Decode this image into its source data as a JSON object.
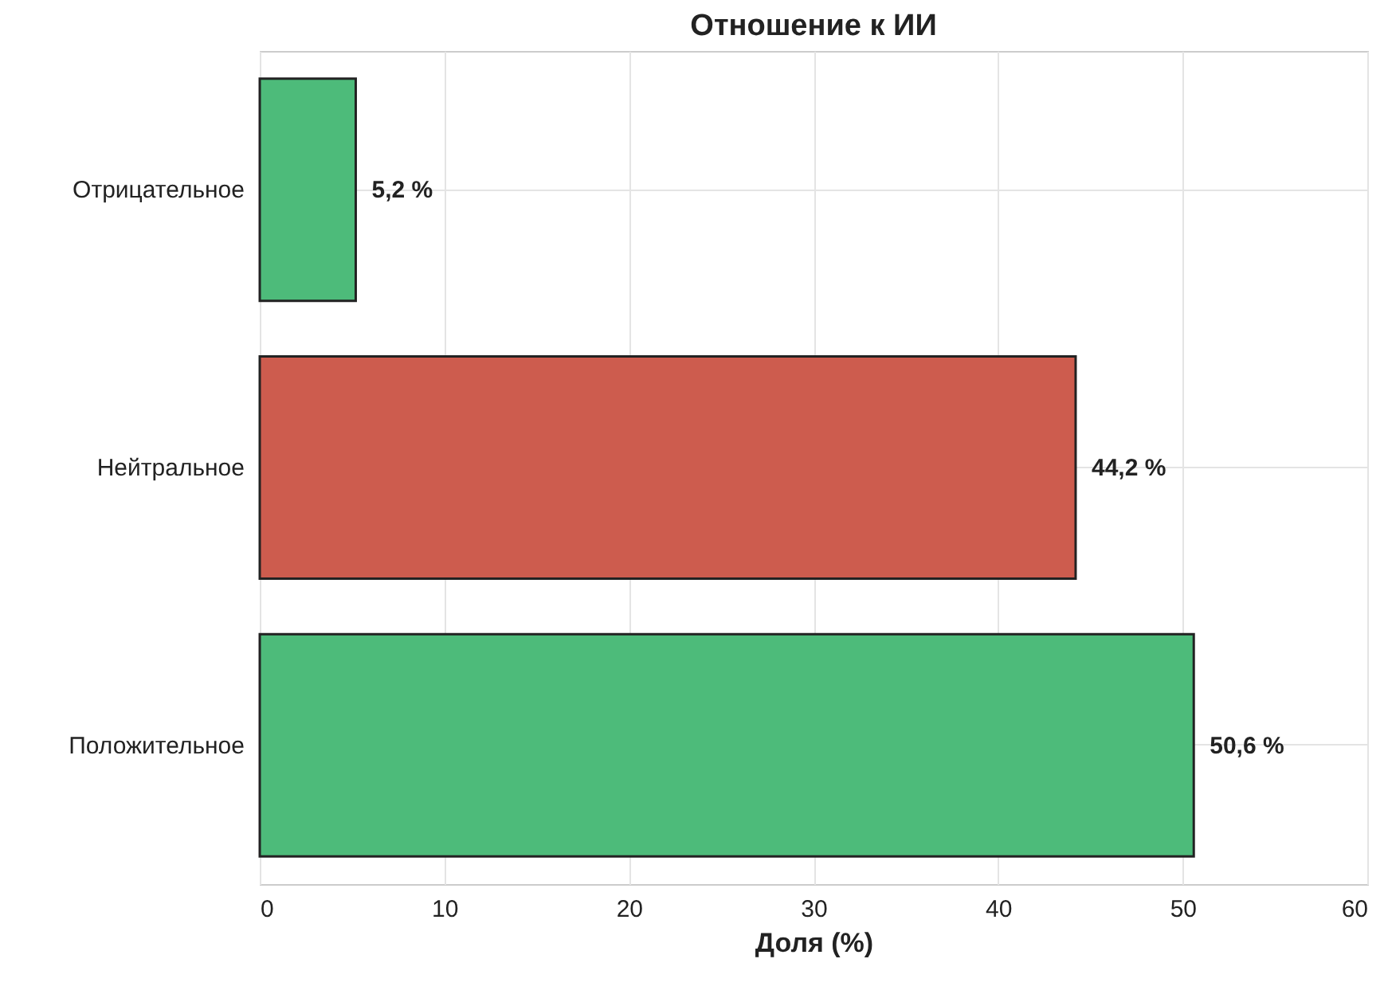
{
  "chart_data": {
    "type": "bar",
    "orientation": "horizontal",
    "title": "Отношение к ИИ",
    "xlabel": "Доля (%)",
    "categories": [
      "Отрицательное",
      "Нейтральное",
      "Положительное"
    ],
    "values": [
      5.2,
      44.2,
      50.6
    ],
    "colors": [
      "#4dbb7a",
      "#cd5c4e",
      "#4dbb7a"
    ],
    "value_labels": [
      "5,2 %",
      "44,2 %",
      "50,6 %"
    ],
    "xlim": [
      0,
      60
    ],
    "xticks": [
      0,
      10,
      20,
      30,
      40,
      50,
      60
    ],
    "grid": true
  }
}
